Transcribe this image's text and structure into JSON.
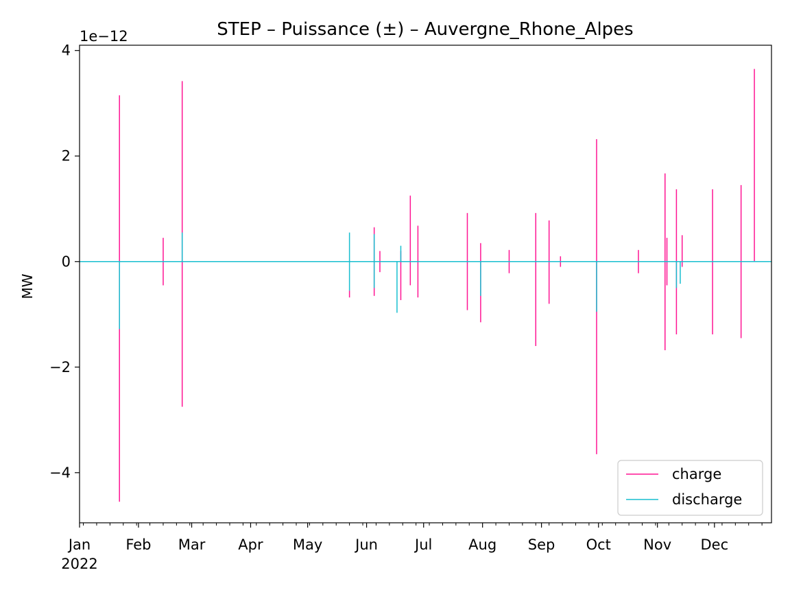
{
  "chart_data": {
    "type": "line",
    "title": "STEP – Puissance (±) – Auvergne_Rhone_Alpes",
    "xlabel": "",
    "ylabel": "MW",
    "y_scale_label": "1e−12",
    "y_multiplier": 1e-12,
    "xlim": [
      "2022-01-01",
      "2022-12-31"
    ],
    "ylim": [
      -4.95,
      4.1
    ],
    "x_ticks": [
      {
        "date": "2022-01-01",
        "label": "Jan",
        "sublabel": "2022"
      },
      {
        "date": "2022-02-01",
        "label": "Feb"
      },
      {
        "date": "2022-03-01",
        "label": "Mar"
      },
      {
        "date": "2022-04-01",
        "label": "Apr"
      },
      {
        "date": "2022-05-01",
        "label": "May"
      },
      {
        "date": "2022-06-01",
        "label": "Jun"
      },
      {
        "date": "2022-07-01",
        "label": "Jul"
      },
      {
        "date": "2022-08-01",
        "label": "Aug"
      },
      {
        "date": "2022-09-01",
        "label": "Sep"
      },
      {
        "date": "2022-10-01",
        "label": "Oct"
      },
      {
        "date": "2022-11-01",
        "label": "Nov"
      },
      {
        "date": "2022-12-01",
        "label": "Dec"
      }
    ],
    "y_ticks": [
      {
        "value": 4,
        "label": "4"
      },
      {
        "value": 2,
        "label": "2"
      },
      {
        "value": 0,
        "label": "0"
      },
      {
        "value": -2,
        "label": "−2"
      },
      {
        "value": -4,
        "label": "−4"
      }
    ],
    "grid": false,
    "legend": {
      "position": "bottom-right"
    },
    "series": [
      {
        "name": "charge",
        "color": "#ff1493",
        "spikes": [
          {
            "date": "2022-01-22",
            "low": -4.55,
            "high": 3.15
          },
          {
            "date": "2022-02-14",
            "low": -0.45,
            "high": 0.45
          },
          {
            "date": "2022-02-24",
            "low": -2.75,
            "high": 3.42
          },
          {
            "date": "2022-05-23",
            "low": -0.68,
            "high": -0.55
          },
          {
            "date": "2022-06-05",
            "low": -0.65,
            "high": 0.65
          },
          {
            "date": "2022-06-08",
            "low": -0.2,
            "high": 0.2
          },
          {
            "date": "2022-06-19",
            "low": -0.73,
            "high": 0.2
          },
          {
            "date": "2022-06-24",
            "low": -0.45,
            "high": 1.25
          },
          {
            "date": "2022-06-28",
            "low": -0.68,
            "high": 0.68
          },
          {
            "date": "2022-07-24",
            "low": -0.92,
            "high": 0.92
          },
          {
            "date": "2022-07-31",
            "low": -1.15,
            "high": 0.35
          },
          {
            "date": "2022-08-15",
            "low": -0.22,
            "high": 0.22
          },
          {
            "date": "2022-08-29",
            "low": -1.6,
            "high": 0.92
          },
          {
            "date": "2022-09-05",
            "low": -0.8,
            "high": 0.78
          },
          {
            "date": "2022-09-11",
            "low": -0.1,
            "high": 0.1
          },
          {
            "date": "2022-09-30",
            "low": -3.65,
            "high": 2.32
          },
          {
            "date": "2022-10-22",
            "low": -0.22,
            "high": 0.22
          },
          {
            "date": "2022-11-05",
            "low": -1.68,
            "high": 1.67
          },
          {
            "date": "2022-11-06",
            "low": -0.45,
            "high": 0.45
          },
          {
            "date": "2022-11-11",
            "low": -1.38,
            "high": 1.37
          },
          {
            "date": "2022-11-14",
            "low": -0.1,
            "high": 0.5
          },
          {
            "date": "2022-11-30",
            "low": -1.38,
            "high": 1.37
          },
          {
            "date": "2022-12-15",
            "low": -1.45,
            "high": 1.45
          },
          {
            "date": "2022-12-22",
            "low": 0.0,
            "high": 3.65
          }
        ]
      },
      {
        "name": "discharge",
        "color": "#17becf",
        "spikes": [
          {
            "date": "2022-01-22",
            "low": -1.28,
            "high": 0.0
          },
          {
            "date": "2022-02-24",
            "low": 0.0,
            "high": 0.55
          },
          {
            "date": "2022-05-23",
            "low": -0.55,
            "high": 0.55
          },
          {
            "date": "2022-06-05",
            "low": -0.5,
            "high": 0.52
          },
          {
            "date": "2022-06-17",
            "low": -0.97,
            "high": 0.0
          },
          {
            "date": "2022-06-19",
            "low": 0.0,
            "high": 0.3
          },
          {
            "date": "2022-07-31",
            "low": -0.65,
            "high": 0.0
          },
          {
            "date": "2022-09-30",
            "low": -0.95,
            "high": 0.0
          },
          {
            "date": "2022-11-11",
            "low": -0.5,
            "high": 0.0
          },
          {
            "date": "2022-11-13",
            "low": -0.42,
            "high": 0.0
          }
        ]
      }
    ]
  }
}
